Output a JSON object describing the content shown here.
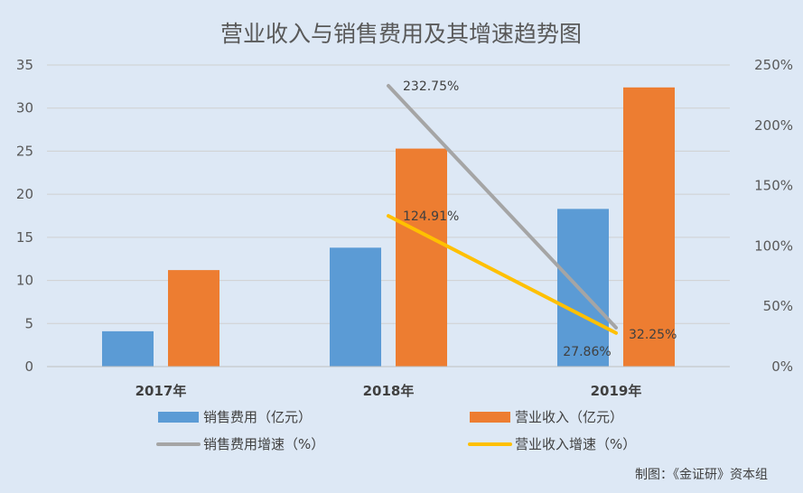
{
  "chart_data": {
    "type": "bar",
    "title": "营业收入与销售费用及其增速趋势图",
    "categories": [
      "2017年",
      "2018年",
      "2019年"
    ],
    "y_left": {
      "min": 0,
      "max": 35,
      "step": 5,
      "ticks": [
        "0",
        "5",
        "10",
        "15",
        "20",
        "25",
        "30",
        "35"
      ]
    },
    "y_right": {
      "min": 0,
      "max": 2.5,
      "step": 0.5,
      "ticks": [
        "0%",
        "50%",
        "100%",
        "150%",
        "200%",
        "250%"
      ]
    },
    "grid": true,
    "legend_position": "bottom",
    "series": [
      {
        "name": "销售费用（亿元）",
        "kind": "bar",
        "axis": "left",
        "color": "#5b9bd5",
        "values": [
          4.1,
          13.8,
          18.3
        ]
      },
      {
        "name": "营业收入（亿元）",
        "kind": "bar",
        "axis": "left",
        "color": "#ed7d31",
        "values": [
          11.2,
          25.3,
          32.4
        ]
      },
      {
        "name": "销售费用增速（%）",
        "kind": "line",
        "axis": "right",
        "color": "#a5a5a5",
        "x": [
          "2018年",
          "2019年"
        ],
        "values": [
          2.3275,
          0.3225
        ],
        "labels": [
          "232.75%",
          "32.25%"
        ]
      },
      {
        "name": "营业收入增速（%）",
        "kind": "line",
        "axis": "right",
        "color": "#ffc000",
        "x": [
          "2018年",
          "2019年"
        ],
        "values": [
          1.2491,
          0.2786
        ],
        "labels": [
          "124.91%",
          "27.86%"
        ]
      }
    ]
  },
  "source_note": "制图：《金证研》资本组"
}
